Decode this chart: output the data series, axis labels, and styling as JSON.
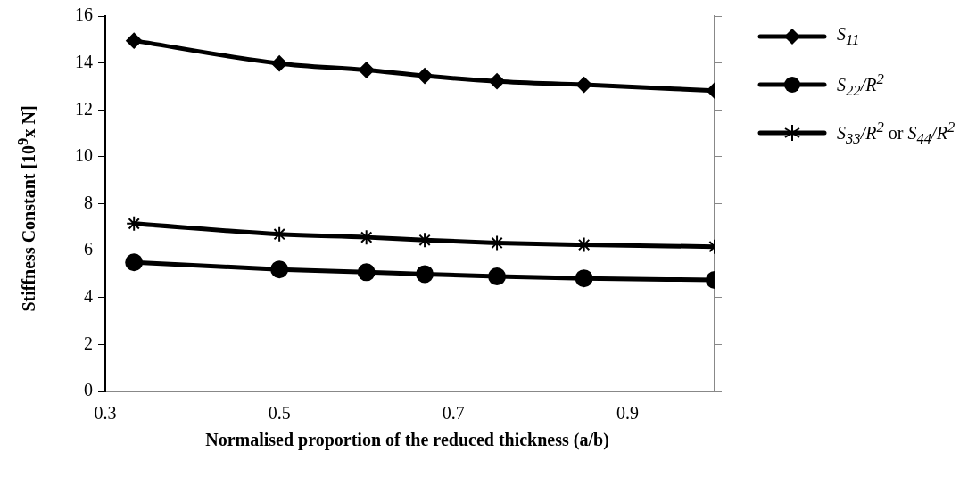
{
  "chart_data": {
    "type": "line",
    "xlabel": "Normalised proportion of the reduced thickness (a/b)",
    "ylabel": "Stiffness Constant [10$^{9}$x N]",
    "x": [
      0.333,
      0.5,
      0.6,
      0.667,
      0.75,
      0.85,
      1.0
    ],
    "series": [
      {
        "name": "S$_{11}$",
        "color": "#000000",
        "marker": "diamond",
        "values": [
          14.95,
          13.98,
          13.7,
          13.45,
          13.22,
          13.07,
          12.82
        ]
      },
      {
        "name": "S$_{22}$/R$^{2}$",
        "color": "#000000",
        "marker": "circle",
        "values": [
          5.5,
          5.2,
          5.08,
          5.0,
          4.9,
          4.82,
          4.75
        ]
      },
      {
        "name": "S$_{33}$/R$^{2}$ or S$_{44}$/R$^{2}$",
        "color": "#000000",
        "marker": "cross",
        "values": [
          7.15,
          6.7,
          6.57,
          6.45,
          6.33,
          6.25,
          6.17
        ]
      }
    ],
    "xlim": [
      0.3,
      1.0
    ],
    "xticks": [
      0.3,
      0.5,
      0.7,
      0.9
    ],
    "ylim": [
      0,
      16
    ],
    "yticks": [
      0,
      2,
      4,
      6,
      8,
      10,
      12,
      14,
      16
    ],
    "grid": false,
    "legend": "right",
    "line_style": "solid"
  }
}
